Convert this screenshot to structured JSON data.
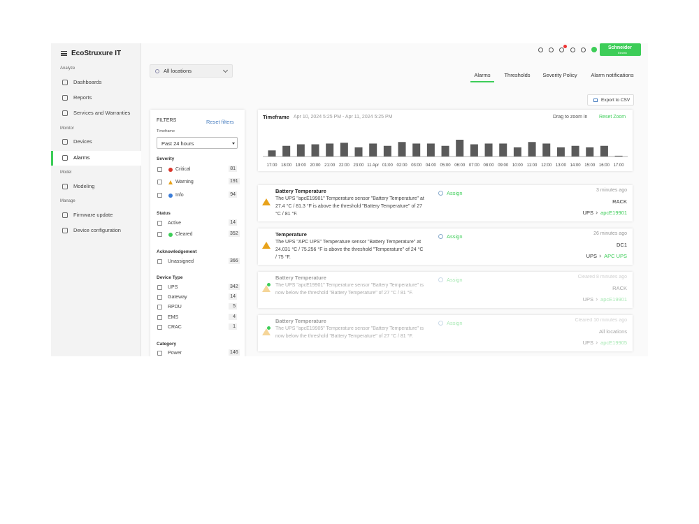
{
  "logo": "EcoStruxure IT",
  "brand_button": {
    "line1": "Schneider",
    "line2": "Electric"
  },
  "sidebar": [
    {
      "section": "Analyze",
      "items": [
        "Dashboards",
        "Reports",
        "Services and Warranties"
      ]
    },
    {
      "section": "Monitor",
      "items": [
        "Devices",
        "Alarms"
      ]
    },
    {
      "section": "Model",
      "items": [
        "Modeling"
      ]
    },
    {
      "section": "Manage",
      "items": [
        "Firmware update",
        "Device configuration"
      ]
    }
  ],
  "active_item": "Alarms",
  "location_filter": "All locations",
  "tabs": [
    "Alarms",
    "Thresholds",
    "Severity Policy",
    "Alarm notifications"
  ],
  "active_tab": "Alarms",
  "export_button": "Export to CSV",
  "filters": {
    "title": "FILTERS",
    "reset": "Reset filters",
    "timeframe_label": "Timeframe",
    "timeframe": "Past 24 hours",
    "groups": [
      {
        "title": "Severity",
        "items": [
          {
            "label": "Critical",
            "count": 81,
            "icon": "critical"
          },
          {
            "label": "Warning",
            "count": 191,
            "icon": "warning"
          },
          {
            "label": "Info",
            "count": 94,
            "icon": "info"
          }
        ]
      },
      {
        "title": "Status",
        "items": [
          {
            "label": "Active",
            "count": 14
          },
          {
            "label": "Cleared",
            "count": 352,
            "icon": "cleared"
          }
        ]
      },
      {
        "title": "Acknowledgement",
        "items": [
          {
            "label": "Unassigned",
            "count": 366
          }
        ]
      },
      {
        "title": "Device Type",
        "items": [
          {
            "label": "UPS",
            "count": 342
          },
          {
            "label": "Gateway",
            "count": 14
          },
          {
            "label": "RPDU",
            "count": 5
          },
          {
            "label": "EMS",
            "count": 4
          },
          {
            "label": "CRAC",
            "count": 1
          }
        ]
      },
      {
        "title": "Category",
        "items": [
          {
            "label": "Power",
            "count": 146
          }
        ]
      }
    ]
  },
  "chart_data": {
    "type": "bar",
    "title": "Timeframe",
    "subtitle": "Apr 10, 2024 5:25 PM  -  Apr 11, 2024 5:25 PM",
    "annotations": [
      "Drag to zoom in",
      "Reset Zoom"
    ],
    "color": "#5a5a5a",
    "categories": [
      "17:00",
      "18:00",
      "19:00",
      "20:00",
      "21:00",
      "22:00",
      "23:00",
      "11 Apr",
      "01:00",
      "02:00",
      "03:00",
      "04:00",
      "05:00",
      "06:00",
      "07:00",
      "08:00",
      "09:00",
      "10:00",
      "11:00",
      "12:00",
      "13:00",
      "14:00",
      "15:00",
      "16:00",
      "17:00"
    ],
    "values": [
      8,
      14,
      16,
      16,
      17,
      18,
      12,
      17,
      14,
      19,
      17,
      17,
      14,
      22,
      16,
      17,
      17,
      12,
      19,
      17,
      12,
      14,
      12,
      14,
      1
    ]
  },
  "alarms": [
    {
      "title": "Battery Temperature",
      "description": "The UPS \"apcE19901\" Temperature sensor \"Battery Temperature\" at 27.4 °C / 81.3 °F is above the threshold \"Battery Temperature\" of 27 °C / 81 °F.",
      "action": "Assign",
      "time": "3 minutes ago",
      "location": "RACK",
      "device_type": "UPS",
      "device": "apcE19901",
      "cleared": false
    },
    {
      "title": "Temperature",
      "description": "The UPS \"APC UPS\" Temperature sensor \"Battery Temperature\" at 24.031 °C / 75.256 °F is above the threshold \"Temperature\" of 24 °C / 75 °F.",
      "action": "Assign",
      "time": "26 minutes ago",
      "location": "DC1",
      "device_type": "UPS",
      "device": "APC UPS",
      "cleared": false
    },
    {
      "title": "Battery Temperature",
      "description": "The UPS \"apcE19901\" Temperature sensor \"Battery Temperature\" is now below the threshold \"Battery Temperature\" of 27 °C / 81 °F.",
      "action": "Assign",
      "time": "Cleared 8 minutes ago",
      "location": "RACK",
      "device_type": "UPS",
      "device": "apcE19901",
      "cleared": true
    },
    {
      "title": "Battery Temperature",
      "description": "The UPS \"apcE19905\" Temperature sensor \"Battery Temperature\" is now below the threshold \"Battery Temperature\" of 27 °C / 81 °F.",
      "action": "Assign",
      "time": "Cleared 10 minutes ago",
      "location": "All locations",
      "device_type": "UPS",
      "device": "apcE19905",
      "cleared": true
    }
  ]
}
